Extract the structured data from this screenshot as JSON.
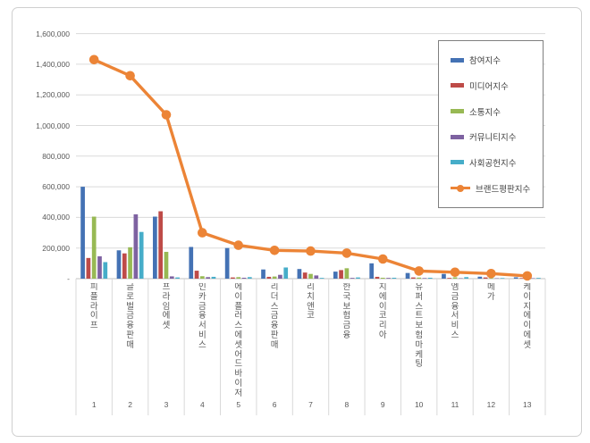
{
  "chart_data": {
    "type": "bar+line",
    "title": "",
    "xlabel": "",
    "ylabel": "",
    "grid": true,
    "legend_position": "upper-right-inside",
    "ylim": [
      0,
      1600000
    ],
    "ytick_step": 200000,
    "y_tick_labels": [
      "-",
      "200,000",
      "400,000",
      "600,000",
      "800,000",
      "1,000,000",
      "1,200,000",
      "1,400,000",
      "1,600,000"
    ],
    "categories": [
      "피플라이프",
      "글로벌금융판매",
      "프라임에셋",
      "인카금융서비스",
      "에이플러스에셋어드바이저",
      "리더스금융판매",
      "리치앤코",
      "한국보험금융",
      "지에이코리아",
      "유퍼스트보험마케팅",
      "엠금융서비스",
      "메가",
      "케이지에이에셋"
    ],
    "ranks": [
      "1",
      "2",
      "3",
      "4",
      "5",
      "6",
      "7",
      "8",
      "9",
      "10",
      "11",
      "12",
      "13"
    ],
    "series": [
      {
        "name": "참여지수",
        "type": "bar",
        "color": "#4472B4",
        "values": [
          600000,
          185000,
          405000,
          207000,
          200000,
          60000,
          63000,
          46000,
          100000,
          37000,
          31000,
          13000,
          9000
        ]
      },
      {
        "name": "미디어지수",
        "type": "bar",
        "color": "#BE4B48",
        "values": [
          135000,
          165000,
          440000,
          52000,
          8000,
          12000,
          40000,
          56000,
          12000,
          8000,
          5000,
          8000,
          4000
        ]
      },
      {
        "name": "소통지수",
        "type": "bar",
        "color": "#98B954",
        "values": [
          405000,
          205000,
          175000,
          16000,
          10000,
          14000,
          31000,
          68000,
          6000,
          7000,
          9000,
          4000,
          5000
        ]
      },
      {
        "name": "커뮤니티지수",
        "type": "bar",
        "color": "#7E62A1",
        "values": [
          146000,
          420000,
          15000,
          10000,
          6000,
          25000,
          21000,
          5000,
          5000,
          4000,
          3000,
          3000,
          3000
        ]
      },
      {
        "name": "사회공헌지수",
        "type": "bar",
        "color": "#46ADC9",
        "values": [
          108000,
          305000,
          8000,
          12000,
          10000,
          73000,
          5000,
          8000,
          6000,
          6000,
          10000,
          4000,
          5000
        ]
      },
      {
        "name": "브랜드평판지수",
        "type": "line",
        "color": "#EC8436",
        "values": [
          1430000,
          1325000,
          1070000,
          300000,
          218000,
          185000,
          180000,
          167000,
          128000,
          50000,
          42000,
          33000,
          18000
        ]
      }
    ],
    "colors": {
      "gridline": "#dadada",
      "axis_line": "#c0c0c0",
      "column_border": "#d9d9d9",
      "tick_text": "#595959",
      "legend_border": "#7f7f7f"
    }
  }
}
